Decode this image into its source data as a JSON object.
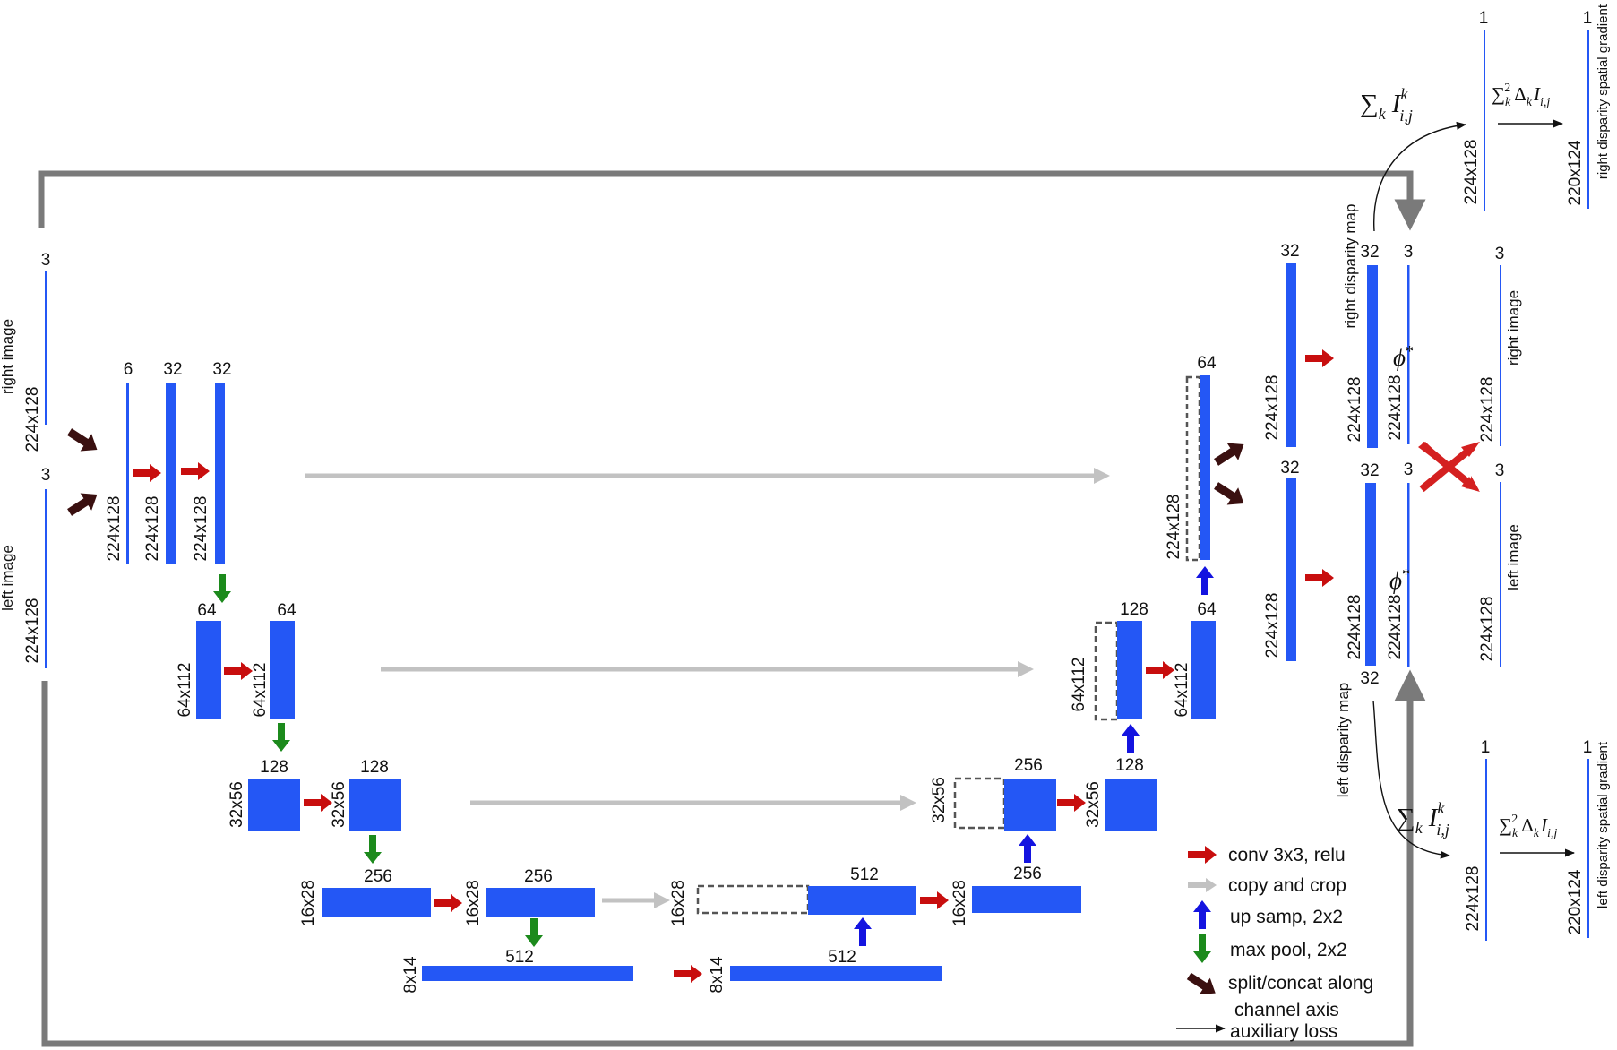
{
  "colors": {
    "block": "#2457f5",
    "thin_line": "#2457f5",
    "conv": "#c80e0e",
    "copy": "#c2c2c2",
    "up": "#1414e0",
    "pool": "#1c8a1c",
    "split": "#3a1010",
    "frame": "#7a7a7a",
    "dashed": "#555555",
    "loss_mask": "#d42020"
  },
  "icons": {
    "conv": "right-arrow-icon",
    "copy": "right-arrow-icon",
    "up": "up-arrow-icon",
    "pool": "down-arrow-icon",
    "split": "diagonal-arrow-icon",
    "auxiliary": "thin-arrow-icon",
    "cross": "cross-icon"
  },
  "inputs": {
    "right_image": {
      "label": "right image",
      "size": "224x128",
      "channels": "3"
    },
    "left_image": {
      "label": "left image",
      "size": "224x128",
      "channels": "3"
    }
  },
  "encoder": {
    "level1": {
      "concat_channels": "6",
      "conv1_channels": "32",
      "conv2_channels": "32",
      "size": "224x128"
    },
    "level2": {
      "conv1_channels": "64",
      "conv2_channels": "64",
      "size": "64x112"
    },
    "level3": {
      "conv1_channels": "128",
      "conv2_channels": "128",
      "size": "32x56"
    },
    "level4": {
      "conv1_channels": "256",
      "conv2_channels": "256",
      "size": "16x28"
    },
    "bottleneck": {
      "conv1_channels": "512",
      "conv2_channels": "512",
      "size": "8x14"
    }
  },
  "decoder": {
    "level4": {
      "concat_channels": "512",
      "conv_channels": "256",
      "size": "16x28"
    },
    "level3": {
      "concat_channels": "256",
      "conv_channels": "128",
      "size": "32x56"
    },
    "level2": {
      "concat_channels": "128",
      "conv_channels": "64",
      "size": "64x112"
    },
    "level1": {
      "concat_channels": "64",
      "size": "224x128"
    }
  },
  "heads": {
    "right": {
      "conv_channels": "32",
      "disparity_channels": "32",
      "size": "224x128",
      "label": "right disparity map"
    },
    "left": {
      "conv_channels": "32",
      "disparity_channels": "32",
      "bottom_channels": "32",
      "size": "224x128",
      "label": "left disparity map"
    }
  },
  "warped": {
    "right": {
      "channels": "3",
      "size": "224x128",
      "operator": "ϕ",
      "operator_sup": "*"
    },
    "left": {
      "channels": "3",
      "size": "224x128",
      "operator": "ϕ",
      "operator_sup": "*"
    }
  },
  "targets": {
    "right": {
      "label": "right image",
      "channels": "3",
      "size": "224x128"
    },
    "left": {
      "label": "left image",
      "channels": "3",
      "size": "224x128"
    }
  },
  "aux_right": {
    "sum_channels": "1",
    "sum_size": "224x128",
    "grad_channels": "1",
    "grad_size": "220x124",
    "grad_label": "right disparity spatial gradient"
  },
  "aux_left": {
    "sum_channels": "1",
    "sum_size": "224x128",
    "grad_channels": "1",
    "grad_size": "220x124",
    "grad_label": "left disparity spatial gradient"
  },
  "formulas": {
    "sum": {
      "sigma": "∑",
      "sub": "k",
      "var": "I",
      "sup": "k",
      "idx": "i,j"
    },
    "grad": {
      "sigma": "∑",
      "sub": "k",
      "sup": "2",
      "delta": "Δ",
      "dsub": "k",
      "var": "I",
      "idx": "i,j"
    }
  },
  "legend": {
    "conv": "conv 3x3, relu",
    "copy": "copy and crop",
    "up": "up samp, 2x2",
    "pool": "max pool, 2x2",
    "split_line1": "split/concat along",
    "split_line2": "channel axis",
    "auxiliary": "auxiliary loss"
  }
}
